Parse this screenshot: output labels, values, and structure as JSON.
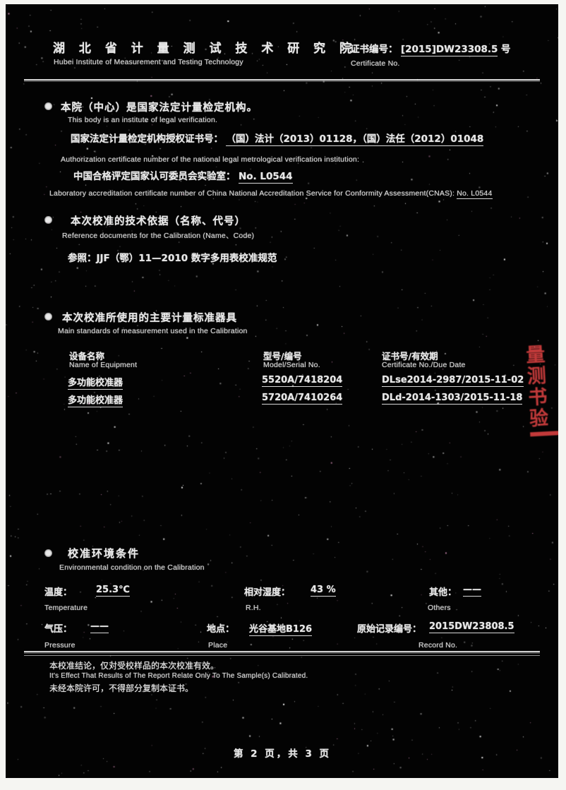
{
  "header": {
    "institute_cn": "湖 北 省 计 量 测 试 技 术 研 究 院",
    "institute_en": "Hubei Institute of Measurement and Testing Technology",
    "certificate_label_cn": "证书编号：",
    "certificate_no": "[2015]DW23308.5",
    "certificate_suffix": "号",
    "certificate_label_en": "Certificate No."
  },
  "section1": {
    "title_cn": "本院（中心）是国家法定计量检定机构。",
    "title_en": "This body is an institute of legal verification.",
    "auth_label_cn": "国家法定计量检定机构授权证书号：",
    "auth_value": "（国）法计（2013）01128，（国）法任（2012）01048",
    "auth_en": "Authorization certificate number of the national legal metrological verification institution:",
    "cnas_label_cn": "中国合格评定国家认可委员会实验室：",
    "cnas_value": "No. L0544",
    "cnas_en": "Laboratory accreditation certificate number of China National Accreditation Service for Conformity Assessment(CNAS):",
    "cnas_en_no": "No. L0544"
  },
  "section2": {
    "title_cn": "本次校准的技术依据（名称、代号）",
    "title_en": "Reference documents for the Calibration (Name、Code)",
    "reference": "参照：JJF（鄂）11—2010 数字多用表校准规范"
  },
  "section3": {
    "title_cn": "本次校准所使用的主要计量标准器具",
    "title_en": "Main standards of measurement used in the Calibration",
    "table": {
      "headers": [
        {
          "cn": "设备名称",
          "en": "Name of Equipment"
        },
        {
          "cn": "型号/编号",
          "en": "Model/Serial No."
        },
        {
          "cn": "证书号/有效期",
          "en": "Certificate No./Due Date"
        }
      ],
      "rows": [
        {
          "name": "多功能校准器",
          "model": "5520A/7418204",
          "cert": "DLse2014-2987/2015-11-02"
        },
        {
          "name": "多功能校准器",
          "model": "5720A/7410264",
          "cert": "DLd-2014-1303/2015-11-18"
        }
      ]
    }
  },
  "stamp": {
    "line1": "量测",
    "line2": "书验"
  },
  "section4": {
    "title_cn": "校准环境条件",
    "title_en": "Environmental condition on the Calibration",
    "fields": [
      {
        "label_cn": "温度：",
        "value": "25.3℃",
        "label_en": "Temperature"
      },
      {
        "label_cn": "相对湿度：",
        "value": "43 %",
        "label_en": "R.H."
      },
      {
        "label_cn": "其他：",
        "value": "——",
        "label_en": "Others"
      },
      {
        "label_cn": "气压：",
        "value": "——",
        "label_en": "Pressure"
      },
      {
        "label_cn": "地点：",
        "value": "光谷基地B126",
        "label_en": "Place"
      },
      {
        "label_cn": "原始记录编号：",
        "value": "2015DW23808.5",
        "label_en": "Record No."
      }
    ]
  },
  "notes": {
    "line1_cn": "本校准结论，仅对受校样品的本次校准有效。",
    "line1_en": "It's Effect That Results of The Report Relate Only To The Sample(s) Calibrated.",
    "line2_cn": "未经本院许可，不得部分复制本证书。"
  },
  "footer": {
    "page_text": "第 2 页，共 3 页"
  }
}
